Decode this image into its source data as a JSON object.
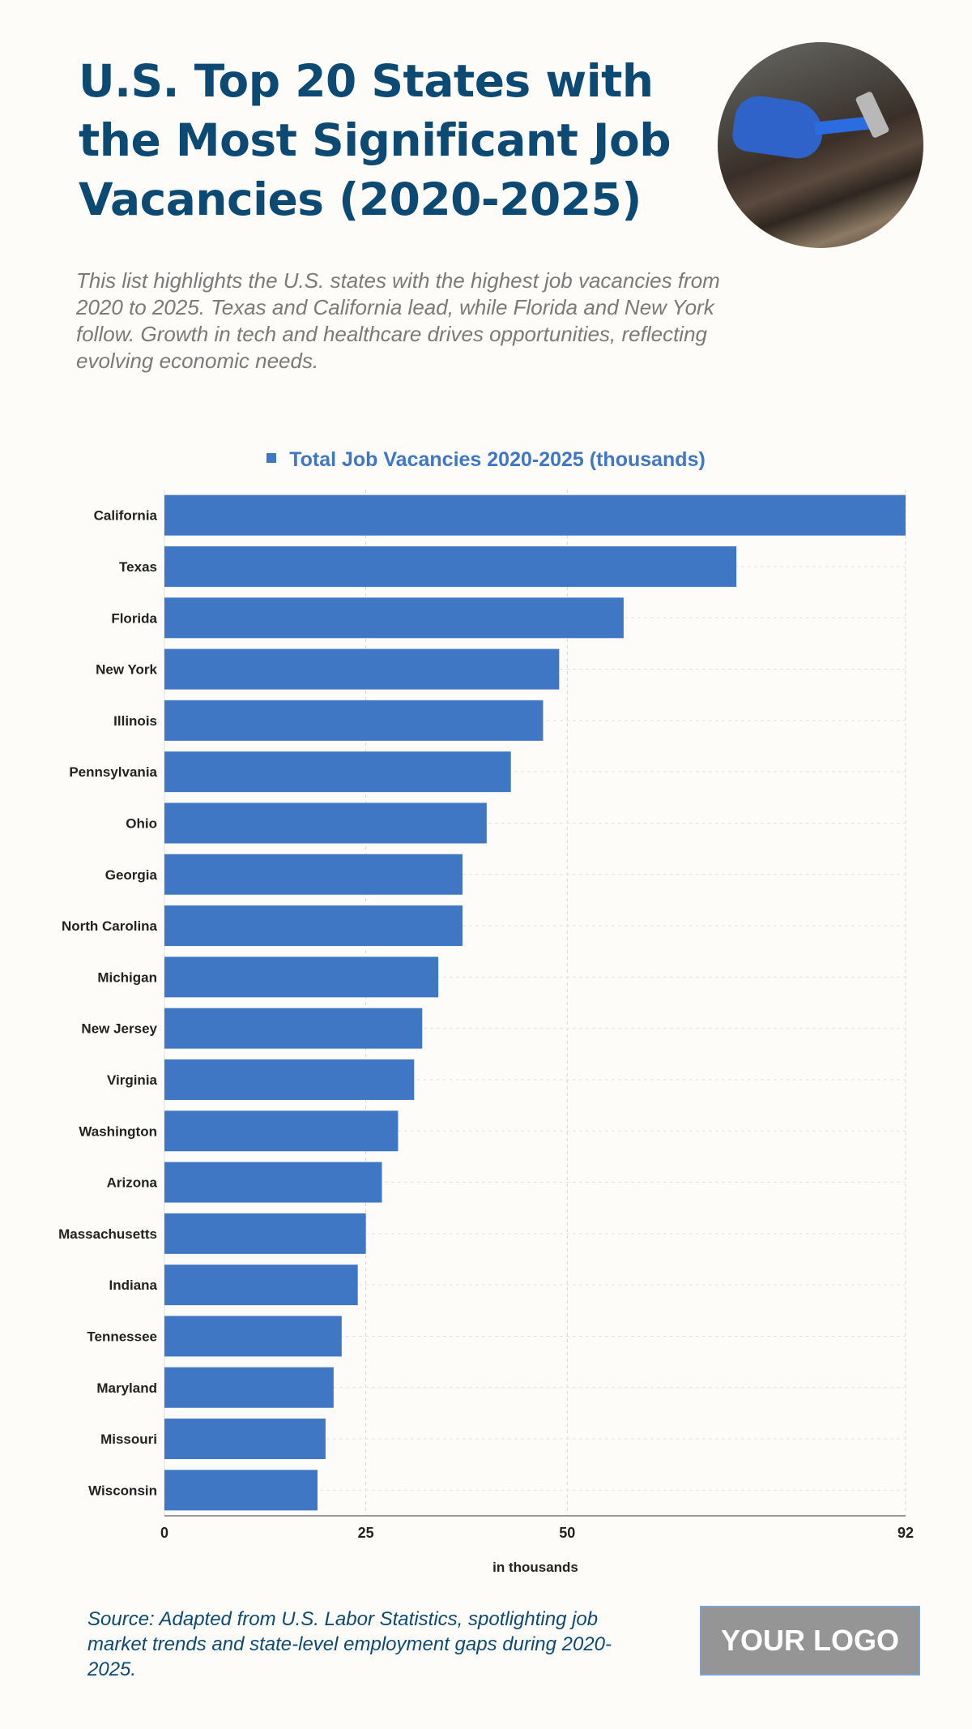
{
  "header": {
    "title": "U.S. Top 20 States with the Most Significant Job Vacancies (2020-2025)",
    "subtitle": "This list highlights the U.S. states with the highest job vacancies from 2020 to 2025. Texas and California lead, while Florida and New York follow. Growth in tech and healthcare drives opportunities, reflecting evolving economic needs.",
    "image": "worker-with-hammer-photo"
  },
  "chart_data": {
    "type": "bar",
    "orientation": "horizontal",
    "legend": {
      "label": "Total Job Vacancies 2020-2025 (thousands)",
      "placement": "top"
    },
    "categories": [
      "California",
      "Texas",
      "Florida",
      "New York",
      "Illinois",
      "Pennsylvania",
      "Ohio",
      "Georgia",
      "North Carolina",
      "Michigan",
      "New Jersey",
      "Virginia",
      "Washington",
      "Arizona",
      "Massachusetts",
      "Indiana",
      "Tennessee",
      "Maryland",
      "Missouri",
      "Wisconsin"
    ],
    "series": [
      {
        "name": "Total Job Vacancies 2020-2025 (thousands)",
        "values": [
          92,
          71,
          57,
          49,
          47,
          43,
          40,
          37,
          37,
          34,
          32,
          31,
          29,
          27,
          25,
          24,
          22,
          21,
          20,
          19
        ],
        "color": "#3f77c4"
      }
    ],
    "xlabel": "in thousands",
    "xlim": [
      0,
      92
    ],
    "xticks": [
      "0",
      "25",
      "50",
      "92"
    ],
    "grid": true
  },
  "footer": {
    "source": "Source: Adapted from U.S. Labor Statistics, spotlighting job market trends and state-level employment gaps during 2020-2025.",
    "logo": "YOUR LOGO"
  }
}
